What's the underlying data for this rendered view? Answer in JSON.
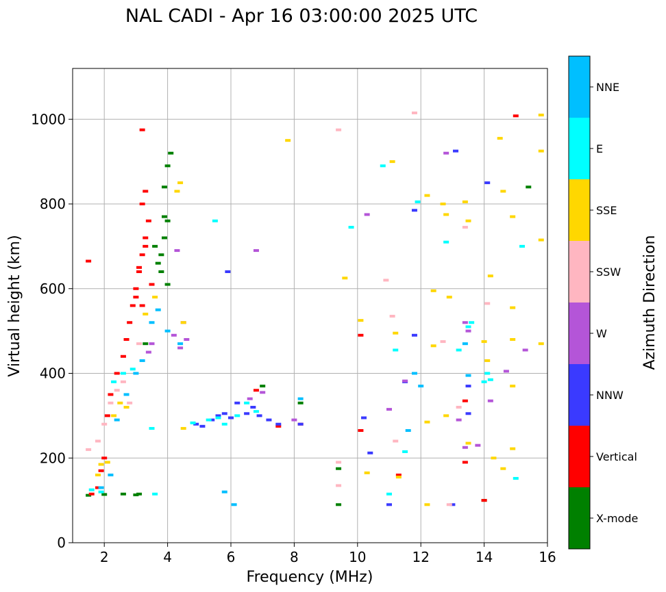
{
  "chart_data": {
    "type": "scatter",
    "title": "NAL CADI - Apr 16 03:00:00 2025 UTC",
    "xlabel": "Frequency (MHz)",
    "ylabel": "Virtual height (km)",
    "xlim": [
      1,
      16
    ],
    "ylim": [
      0,
      1120
    ],
    "xticks": [
      2,
      4,
      6,
      8,
      10,
      12,
      14,
      16
    ],
    "yticks": [
      0,
      200,
      400,
      600,
      800,
      1000
    ],
    "grid": true,
    "colorbar": {
      "title": "Azimuth Direction",
      "categories": [
        {
          "label": "X-mode",
          "color": "#008000"
        },
        {
          "label": "Vertical",
          "color": "#ff0000"
        },
        {
          "label": "NNW",
          "color": "#3a3aff"
        },
        {
          "label": "W",
          "color": "#b455d8"
        },
        {
          "label": "SSW",
          "color": "#ffb6c1"
        },
        {
          "label": "SSE",
          "color": "#ffd700"
        },
        {
          "label": "E",
          "color": "#00ffff"
        },
        {
          "label": "NNE",
          "color": "#00bfff"
        }
      ]
    },
    "series": [
      {
        "name": "X-mode",
        "points": [
          [
            1.5,
            112
          ],
          [
            2.0,
            114
          ],
          [
            2.6,
            115
          ],
          [
            3.0,
            113
          ],
          [
            3.1,
            115
          ],
          [
            3.6,
            700
          ],
          [
            3.8,
            680
          ],
          [
            3.9,
            720
          ],
          [
            4.0,
            760
          ],
          [
            3.9,
            840
          ],
          [
            4.0,
            890
          ],
          [
            4.1,
            920
          ],
          [
            3.7,
            660
          ],
          [
            3.8,
            640
          ],
          [
            4.0,
            610
          ],
          [
            3.9,
            770
          ],
          [
            9.4,
            175
          ],
          [
            9.4,
            90
          ],
          [
            8.2,
            330
          ],
          [
            7.0,
            370
          ],
          [
            15.4,
            840
          ],
          [
            3.3,
            470
          ],
          [
            14.0,
            100
          ]
        ]
      },
      {
        "name": "Vertical",
        "points": [
          [
            1.5,
            665
          ],
          [
            1.6,
            115
          ],
          [
            1.8,
            130
          ],
          [
            1.9,
            170
          ],
          [
            2.0,
            200
          ],
          [
            2.1,
            300
          ],
          [
            2.2,
            350
          ],
          [
            2.4,
            400
          ],
          [
            2.6,
            440
          ],
          [
            2.7,
            480
          ],
          [
            2.8,
            520
          ],
          [
            2.9,
            560
          ],
          [
            3.0,
            600
          ],
          [
            3.1,
            640
          ],
          [
            3.2,
            680
          ],
          [
            3.3,
            720
          ],
          [
            3.4,
            760
          ],
          [
            3.2,
            800
          ],
          [
            3.3,
            830
          ],
          [
            3.2,
            975
          ],
          [
            3.1,
            650
          ],
          [
            3.0,
            580
          ],
          [
            3.2,
            560
          ],
          [
            3.5,
            610
          ],
          [
            3.3,
            700
          ],
          [
            6.8,
            360
          ],
          [
            7.5,
            275
          ],
          [
            8.2,
            280
          ],
          [
            10.1,
            265
          ],
          [
            10.1,
            490
          ],
          [
            11.3,
            160
          ],
          [
            13.4,
            190
          ],
          [
            13.4,
            335
          ],
          [
            15.0,
            1008
          ],
          [
            14.0,
            100
          ]
        ]
      },
      {
        "name": "NNW",
        "points": [
          [
            4.9,
            280
          ],
          [
            5.1,
            275
          ],
          [
            5.4,
            290
          ],
          [
            5.6,
            300
          ],
          [
            5.8,
            305
          ],
          [
            6.0,
            295
          ],
          [
            6.2,
            330
          ],
          [
            6.5,
            305
          ],
          [
            6.7,
            320
          ],
          [
            6.9,
            300
          ],
          [
            7.2,
            290
          ],
          [
            7.5,
            280
          ],
          [
            8.2,
            280
          ],
          [
            5.9,
            640
          ],
          [
            10.2,
            295
          ],
          [
            10.4,
            212
          ],
          [
            11.5,
            380
          ],
          [
            11.8,
            490
          ],
          [
            11.8,
            785
          ],
          [
            13.1,
            925
          ],
          [
            13.5,
            305
          ],
          [
            13.5,
            370
          ],
          [
            14.1,
            850
          ],
          [
            13.0,
            90
          ],
          [
            11.0,
            90
          ]
        ]
      },
      {
        "name": "W",
        "points": [
          [
            3.4,
            450
          ],
          [
            3.5,
            470
          ],
          [
            4.2,
            490
          ],
          [
            4.4,
            460
          ],
          [
            4.6,
            480
          ],
          [
            4.5,
            520
          ],
          [
            4.3,
            690
          ],
          [
            6.8,
            690
          ],
          [
            7.0,
            355
          ],
          [
            6.6,
            340
          ],
          [
            8.0,
            290
          ],
          [
            10.3,
            775
          ],
          [
            11.5,
            382
          ],
          [
            12.8,
            920
          ],
          [
            13.4,
            520
          ],
          [
            13.5,
            500
          ],
          [
            13.4,
            225
          ],
          [
            13.8,
            230
          ],
          [
            14.2,
            335
          ],
          [
            14.7,
            405
          ],
          [
            15.3,
            455
          ],
          [
            11.0,
            315
          ],
          [
            13.2,
            290
          ]
        ]
      },
      {
        "name": "SSW",
        "points": [
          [
            1.5,
            220
          ],
          [
            1.8,
            240
          ],
          [
            2.0,
            280
          ],
          [
            2.2,
            330
          ],
          [
            2.4,
            360
          ],
          [
            2.6,
            380
          ],
          [
            2.8,
            330
          ],
          [
            3.1,
            470
          ],
          [
            9.4,
            135
          ],
          [
            9.4,
            190
          ],
          [
            9.4,
            975
          ],
          [
            10.9,
            620
          ],
          [
            11.1,
            535
          ],
          [
            11.8,
            1015
          ],
          [
            12.7,
            475
          ],
          [
            13.4,
            745
          ],
          [
            14.1,
            565
          ],
          [
            12.9,
            90
          ],
          [
            11.2,
            240
          ],
          [
            13.2,
            320
          ]
        ]
      },
      {
        "name": "SSE",
        "points": [
          [
            1.8,
            160
          ],
          [
            1.9,
            185
          ],
          [
            2.1,
            190
          ],
          [
            2.3,
            300
          ],
          [
            2.5,
            330
          ],
          [
            2.7,
            320
          ],
          [
            3.3,
            540
          ],
          [
            3.6,
            580
          ],
          [
            4.3,
            830
          ],
          [
            4.4,
            850
          ],
          [
            4.5,
            520
          ],
          [
            4.5,
            270
          ],
          [
            7.8,
            950
          ],
          [
            9.6,
            625
          ],
          [
            10.1,
            525
          ],
          [
            10.3,
            165
          ],
          [
            11.1,
            900
          ],
          [
            11.2,
            495
          ],
          [
            11.3,
            155
          ],
          [
            12.2,
            820
          ],
          [
            12.4,
            465
          ],
          [
            12.4,
            595
          ],
          [
            12.7,
            800
          ],
          [
            12.8,
            775
          ],
          [
            12.9,
            580
          ],
          [
            13.4,
            805
          ],
          [
            13.5,
            760
          ],
          [
            13.5,
            235
          ],
          [
            14.0,
            475
          ],
          [
            14.1,
            430
          ],
          [
            14.2,
            630
          ],
          [
            14.5,
            955
          ],
          [
            14.6,
            830
          ],
          [
            14.9,
            770
          ],
          [
            14.9,
            555
          ],
          [
            14.9,
            480
          ],
          [
            14.9,
            370
          ],
          [
            14.9,
            222
          ],
          [
            15.8,
            1010
          ],
          [
            15.8,
            925
          ],
          [
            15.8,
            715
          ],
          [
            15.8,
            470
          ],
          [
            12.8,
            300
          ],
          [
            12.2,
            285
          ],
          [
            14.3,
            200
          ],
          [
            14.6,
            175
          ],
          [
            12.2,
            90
          ]
        ]
      },
      {
        "name": "E",
        "points": [
          [
            1.6,
            125
          ],
          [
            1.9,
            120
          ],
          [
            2.3,
            380
          ],
          [
            2.6,
            400
          ],
          [
            2.9,
            410
          ],
          [
            3.5,
            270
          ],
          [
            3.6,
            115
          ],
          [
            4.8,
            283
          ],
          [
            5.3,
            290
          ],
          [
            5.6,
            295
          ],
          [
            5.8,
            280
          ],
          [
            6.2,
            300
          ],
          [
            6.5,
            330
          ],
          [
            6.8,
            310
          ],
          [
            5.5,
            760
          ],
          [
            9.8,
            745
          ],
          [
            10.8,
            890
          ],
          [
            11.2,
            455
          ],
          [
            11.5,
            215
          ],
          [
            11.0,
            115
          ],
          [
            11.9,
            805
          ],
          [
            12.8,
            710
          ],
          [
            13.6,
            520
          ],
          [
            13.5,
            510
          ],
          [
            14.1,
            400
          ],
          [
            14.2,
            385
          ],
          [
            15.2,
            700
          ],
          [
            15.0,
            152
          ],
          [
            13.2,
            455
          ],
          [
            14.0,
            380
          ]
        ]
      },
      {
        "name": "NNE",
        "points": [
          [
            1.9,
            130
          ],
          [
            2.2,
            160
          ],
          [
            2.4,
            290
          ],
          [
            2.7,
            350
          ],
          [
            3.0,
            400
          ],
          [
            3.2,
            430
          ],
          [
            3.5,
            520
          ],
          [
            3.7,
            550
          ],
          [
            4.0,
            500
          ],
          [
            4.4,
            470
          ],
          [
            5.8,
            120
          ],
          [
            6.1,
            90
          ],
          [
            8.2,
            340
          ],
          [
            11.8,
            400
          ],
          [
            12.0,
            370
          ],
          [
            13.4,
            470
          ],
          [
            13.5,
            395
          ],
          [
            11.6,
            265
          ]
        ]
      }
    ]
  }
}
